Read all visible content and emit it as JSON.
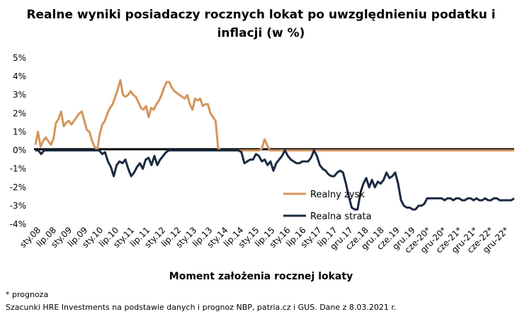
{
  "title_line1": "Realne wyniki posiadaczy rocznych lokat po uwzględnieniu podatku i",
  "title_line2": "inflacji (w %)",
  "footnote": "* prognoza",
  "source": "Szacunki HRE Investments na podstawie danych i prognoz NBP,  patria.cz  i GUS. Dane z 8.03.2021 r.",
  "chart_data": {
    "type": "line",
    "title": "Realne wyniki posiadaczy rocznych lokat po uwzględnieniu podatku i inflacji (w %)",
    "xlabel": "Moment założenia rocznej lokaty",
    "ylabel": "",
    "ylim": [
      -4,
      5
    ],
    "yticks": [
      -4,
      -3,
      -2,
      -1,
      0,
      1,
      2,
      3,
      4,
      5
    ],
    "ytick_labels": [
      "-4%",
      "-3%",
      "-2%",
      "-1%",
      "0%",
      "1%",
      "2%",
      "3%",
      "4%",
      "5%"
    ],
    "xtick_labels": [
      "sty.08",
      "lip.08",
      "sty.09",
      "lip.09",
      "sty.10",
      "lip.10",
      "sty.11",
      "lip.11",
      "sty.12",
      "lip.12",
      "sty.13",
      "lip.13",
      "sty.14",
      "lip.14",
      "sty.15",
      "lip.15",
      "sty.16",
      "lip.16",
      "sty.17",
      "lip.17",
      "gru.17",
      "cze.18",
      "gru.18",
      "cze.19",
      "gru.19",
      "cze-20*",
      "gru-20*",
      "cze-21*",
      "gru-21*",
      "cze-22*",
      "gru-22*"
    ],
    "grid": false,
    "legend_position": "lower-right",
    "colors": {
      "Realny zysk": "#d4955c",
      "Realna strata": "#1b2a41"
    },
    "series": [
      {
        "name": "Realny zysk",
        "values": [
          0.3,
          1.0,
          0.2,
          0.5,
          0.7,
          0.5,
          0.3,
          0.6,
          1.5,
          1.7,
          2.1,
          1.3,
          1.5,
          1.6,
          1.4,
          1.6,
          1.8,
          2.0,
          2.1,
          1.6,
          1.1,
          1.0,
          0.5,
          0.2,
          0.0,
          0.9,
          1.4,
          1.6,
          2.0,
          2.3,
          2.5,
          2.9,
          3.3,
          3.8,
          3.0,
          2.9,
          3.0,
          3.2,
          3.0,
          2.9,
          2.6,
          2.3,
          2.2,
          2.4,
          1.8,
          2.3,
          2.2,
          2.5,
          2.7,
          3.0,
          3.4,
          3.7,
          3.7,
          3.4,
          3.2,
          3.1,
          3.0,
          2.9,
          2.8,
          3.0,
          2.5,
          2.2,
          2.8,
          2.7,
          2.8,
          2.4,
          2.5,
          2.5,
          2.0,
          1.8,
          1.6,
          0.1,
          0,
          0,
          0,
          0,
          0,
          0,
          0,
          0,
          0,
          0,
          0,
          0,
          0,
          0,
          0,
          0,
          0.1,
          0.6,
          0.3,
          0,
          0,
          0,
          0,
          0,
          0,
          0,
          0,
          0,
          0,
          0,
          0,
          0,
          0,
          0,
          0,
          0,
          0,
          0,
          0,
          0,
          0,
          0,
          0,
          0,
          0,
          0,
          0,
          0,
          0,
          0,
          0,
          0,
          0,
          0,
          0,
          0,
          0,
          0,
          0,
          0,
          0,
          0,
          0,
          0,
          0,
          0,
          0,
          0,
          0,
          0,
          0,
          0,
          0,
          0,
          0,
          0,
          0,
          0,
          0,
          0,
          0,
          0,
          0,
          0,
          0,
          0,
          0,
          0,
          0,
          0,
          0,
          0,
          0,
          0,
          0,
          0,
          0,
          0,
          0,
          0,
          0,
          0,
          0,
          0,
          0,
          0,
          0,
          0,
          0,
          0,
          0,
          0,
          0,
          0,
          0
        ]
      },
      {
        "name": "Realna strata",
        "values": [
          0,
          0,
          -0.2,
          0,
          0,
          0,
          0,
          0,
          0,
          0,
          0,
          0,
          0,
          0,
          0,
          0,
          0,
          0,
          0,
          0,
          0,
          0,
          0,
          -0.2,
          -0.1,
          -0.6,
          -0.9,
          -1.4,
          -0.8,
          -0.6,
          -0.7,
          -0.5,
          -1.0,
          -1.4,
          -1.2,
          -0.9,
          -0.7,
          -1.0,
          -0.5,
          -0.4,
          -0.8,
          -0.3,
          -0.8,
          -0.5,
          -0.3,
          -0.1,
          0,
          0,
          0,
          0,
          0,
          0,
          0,
          0,
          0,
          0,
          0,
          0,
          0,
          0,
          0,
          0,
          0,
          0,
          0,
          0,
          0,
          0,
          0,
          0,
          0,
          -0.1,
          -0.7,
          -0.6,
          -0.5,
          -0.5,
          -0.2,
          -0.3,
          -0.6,
          -0.5,
          -0.8,
          -0.6,
          -1.1,
          -0.7,
          -0.5,
          -0.3,
          0,
          -0.3,
          -0.5,
          -0.6,
          -0.7,
          -0.7,
          -0.6,
          -0.6,
          -0.6,
          -0.4,
          0,
          -0.3,
          -0.8,
          -1.0,
          -1.1,
          -1.3,
          -1.4,
          -1.4,
          -1.2,
          -1.1,
          -1.2,
          -1.8,
          -2.5,
          -3.1,
          -3.2,
          -3.2,
          -2.3,
          -1.8,
          -1.5,
          -2.0,
          -1.6,
          -2.0,
          -1.7,
          -1.8,
          -1.6,
          -1.2,
          -1.5,
          -1.4,
          -1.2,
          -1.8,
          -2.7,
          -3.0,
          -3.1,
          -3.1,
          -3.2,
          -3.2,
          -3.0,
          -3.0,
          -2.9,
          -2.6,
          -2.6,
          -2.6,
          -2.6,
          -2.6,
          -2.6,
          -2.7,
          -2.6,
          -2.6,
          -2.7,
          -2.6,
          -2.6,
          -2.7,
          -2.7,
          -2.6,
          -2.6,
          -2.7,
          -2.6,
          -2.7,
          -2.7,
          -2.6,
          -2.7,
          -2.7,
          -2.6,
          -2.6,
          -2.7,
          -2.7,
          -2.7,
          -2.7,
          -2.7,
          -2.6
        ]
      }
    ]
  }
}
